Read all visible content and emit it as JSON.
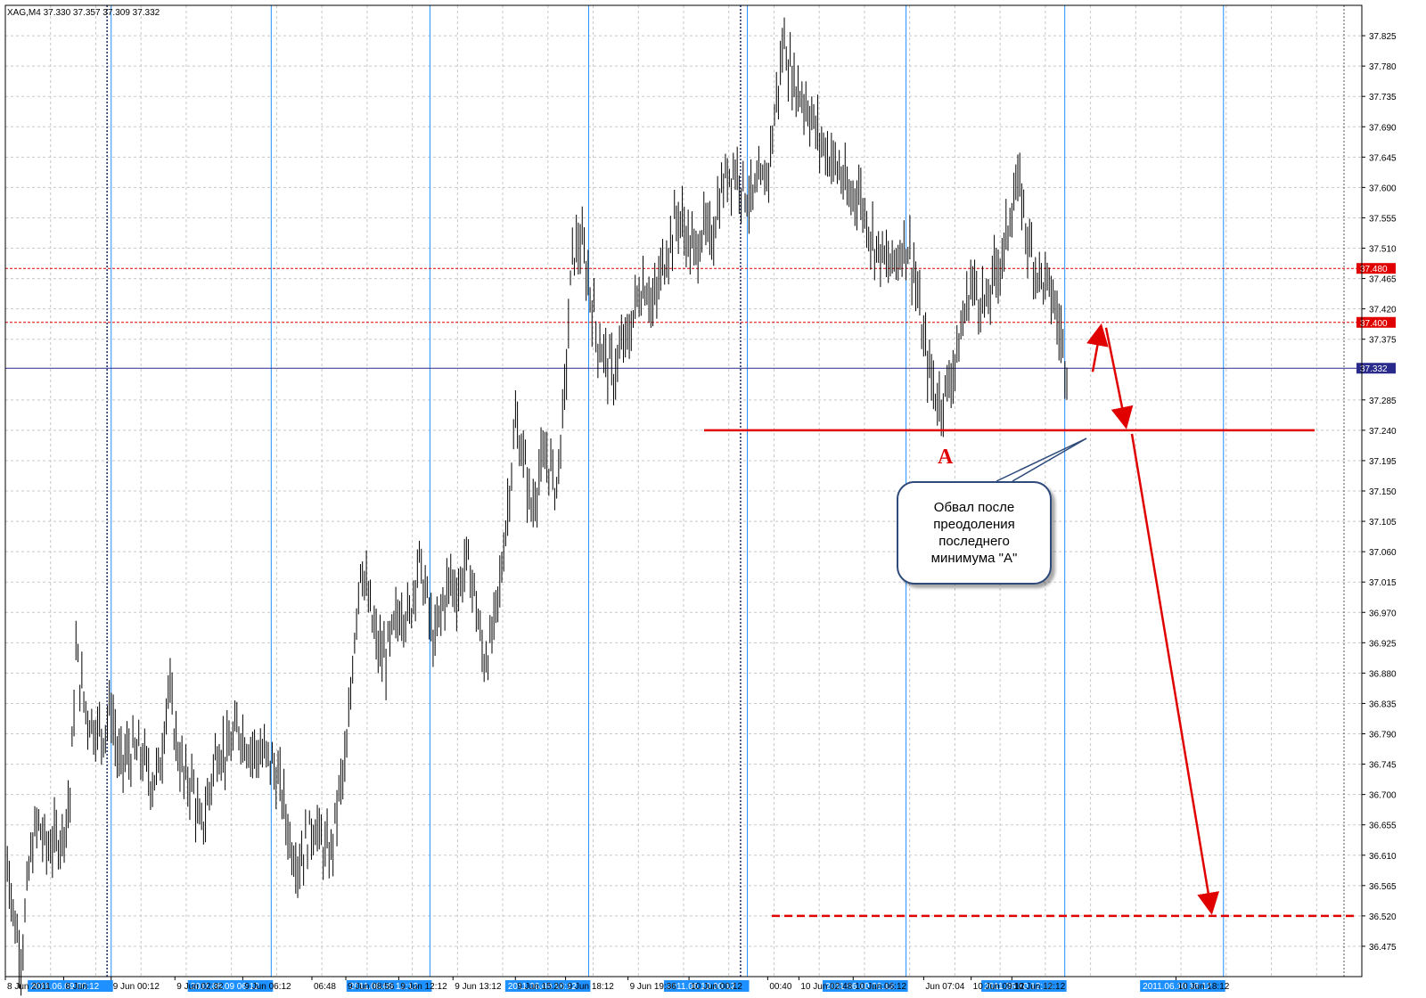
{
  "header": {
    "symbol": "XAG,M4",
    "ohlc": "37.330 37.357 37.309 37.332"
  },
  "colors": {
    "background": "#ffffff",
    "grid": "#c8c8c8",
    "candle": "#000000",
    "session_line": "#1e90ff",
    "level_line": "#e00000",
    "current_price_line": "#2a2a8c",
    "annotation": "#e00000",
    "axis_text": "#000000"
  },
  "annotation": {
    "label_a": "A",
    "callout_text": "Обвал после преодоления последнего минимума \"A\""
  },
  "chart_data": {
    "type": "bar",
    "title": "",
    "ylim": [
      36.43,
      37.87
    ],
    "y_ticks": [
      "37.825",
      "37.780",
      "37.735",
      "37.690",
      "37.645",
      "37.600",
      "37.555",
      "37.510",
      "37.465",
      "37.420",
      "37.375",
      "37.285",
      "37.240",
      "37.195",
      "37.150",
      "37.105",
      "37.060",
      "37.015",
      "36.970",
      "36.925",
      "36.880",
      "36.835",
      "36.790",
      "36.745",
      "36.700",
      "36.655",
      "36.610",
      "36.565",
      "36.520",
      "36.475"
    ],
    "x_labels": [
      "8 Jun 2011",
      "8 Jun",
      "9 Jun 00:12",
      "9 Jun 02:32",
      "9 Jun 06:12",
      "06:48",
      "9 Jun 08:56",
      "9 Jun 12:12",
      "9 Jun 13:12",
      "9 Jun 15:20",
      "9 Jun 18:12",
      "9 Jun 19:36",
      "10 Jun 00:12",
      "00:40",
      "10 Jun 02:48",
      "10 Jun 06:12",
      "Jun 07:04",
      "10 Jun 09:12",
      "10 Jun 12:12",
      "10 Jun 18:12"
    ],
    "x_label_frac": [
      0.0,
      0.043,
      0.078,
      0.125,
      0.175,
      0.226,
      0.251,
      0.29,
      0.33,
      0.376,
      0.413,
      0.459,
      0.504,
      0.562,
      0.585,
      0.625,
      0.677,
      0.712,
      0.742,
      0.863
    ],
    "session_markers": [
      "2011.06.09 00:12",
      "2011.06.09 06:12",
      "2011.06.09 12:12",
      "2011.06.09 18:12",
      "2011.06.10 00:12",
      "2011.06.10 06:12",
      "2011.06.10 12:12",
      "2011.06.10 18:12"
    ],
    "session_frac": [
      0.078,
      0.196,
      0.313,
      0.43,
      0.547,
      0.664,
      0.781,
      0.898
    ],
    "dotted_session_frac": [
      0.075,
      0.542
    ],
    "price_levels": [
      {
        "label": "37.480",
        "value": 37.48,
        "style": "dotted-red"
      },
      {
        "label": "37.400",
        "value": 37.4,
        "style": "dotted-red"
      },
      {
        "label": "37.332",
        "value": 37.332,
        "style": "current"
      }
    ],
    "support_level_A": 37.24,
    "target_level": 36.52,
    "series": [
      {
        "values_anchor": [
          [
            0.0,
            36.64
          ],
          [
            0.006,
            36.52
          ],
          [
            0.012,
            36.46
          ],
          [
            0.018,
            36.6
          ],
          [
            0.024,
            36.66
          ],
          [
            0.03,
            36.62
          ],
          [
            0.036,
            36.63
          ],
          [
            0.042,
            36.64
          ],
          [
            0.048,
            36.7
          ],
          [
            0.052,
            36.91
          ],
          [
            0.056,
            36.86
          ],
          [
            0.06,
            36.82
          ],
          [
            0.066,
            36.8
          ],
          [
            0.072,
            36.79
          ],
          [
            0.078,
            36.83
          ],
          [
            0.084,
            36.74
          ],
          [
            0.09,
            36.76
          ],
          [
            0.1,
            36.76
          ],
          [
            0.108,
            36.72
          ],
          [
            0.114,
            36.74
          ],
          [
            0.12,
            36.86
          ],
          [
            0.126,
            36.78
          ],
          [
            0.132,
            36.72
          ],
          [
            0.138,
            36.72
          ],
          [
            0.144,
            36.64
          ],
          [
            0.15,
            36.7
          ],
          [
            0.156,
            36.77
          ],
          [
            0.164,
            36.76
          ],
          [
            0.172,
            36.8
          ],
          [
            0.18,
            36.77
          ],
          [
            0.188,
            36.76
          ],
          [
            0.196,
            36.75
          ],
          [
            0.204,
            36.7
          ],
          [
            0.21,
            36.63
          ],
          [
            0.216,
            36.6
          ],
          [
            0.222,
            36.63
          ],
          [
            0.228,
            36.66
          ],
          [
            0.234,
            36.62
          ],
          [
            0.24,
            36.61
          ],
          [
            0.246,
            36.7
          ],
          [
            0.252,
            36.76
          ],
          [
            0.256,
            36.9
          ],
          [
            0.262,
            37.05
          ],
          [
            0.268,
            36.98
          ],
          [
            0.274,
            36.92
          ],
          [
            0.28,
            36.9
          ],
          [
            0.286,
            36.94
          ],
          [
            0.292,
            36.98
          ],
          [
            0.298,
            36.96
          ],
          [
            0.304,
            37.05
          ],
          [
            0.31,
            37.0
          ],
          [
            0.316,
            36.92
          ],
          [
            0.322,
            36.98
          ],
          [
            0.328,
            37.02
          ],
          [
            0.334,
            37.0
          ],
          [
            0.34,
            37.05
          ],
          [
            0.346,
            37.0
          ],
          [
            0.352,
            36.9
          ],
          [
            0.358,
            36.92
          ],
          [
            0.364,
            37.0
          ],
          [
            0.37,
            37.12
          ],
          [
            0.376,
            37.25
          ],
          [
            0.382,
            37.2
          ],
          [
            0.388,
            37.12
          ],
          [
            0.394,
            37.18
          ],
          [
            0.4,
            37.2
          ],
          [
            0.406,
            37.15
          ],
          [
            0.412,
            37.28
          ],
          [
            0.418,
            37.5
          ],
          [
            0.424,
            37.52
          ],
          [
            0.43,
            37.46
          ],
          [
            0.436,
            37.38
          ],
          [
            0.442,
            37.35
          ],
          [
            0.448,
            37.32
          ],
          [
            0.454,
            37.36
          ],
          [
            0.46,
            37.38
          ],
          [
            0.466,
            37.44
          ],
          [
            0.472,
            37.46
          ],
          [
            0.478,
            37.42
          ],
          [
            0.484,
            37.48
          ],
          [
            0.49,
            37.52
          ],
          [
            0.496,
            37.56
          ],
          [
            0.502,
            37.53
          ],
          [
            0.508,
            37.5
          ],
          [
            0.514,
            37.54
          ],
          [
            0.52,
            37.52
          ],
          [
            0.526,
            37.58
          ],
          [
            0.532,
            37.62
          ],
          [
            0.538,
            37.63
          ],
          [
            0.544,
            37.6
          ],
          [
            0.55,
            37.58
          ],
          [
            0.556,
            37.6
          ],
          [
            0.562,
            37.62
          ],
          [
            0.568,
            37.72
          ],
          [
            0.574,
            37.82
          ],
          [
            0.58,
            37.76
          ],
          [
            0.586,
            37.74
          ],
          [
            0.592,
            37.72
          ],
          [
            0.598,
            37.68
          ],
          [
            0.604,
            37.66
          ],
          [
            0.61,
            37.64
          ],
          [
            0.616,
            37.62
          ],
          [
            0.622,
            37.58
          ],
          [
            0.628,
            37.6
          ],
          [
            0.634,
            37.56
          ],
          [
            0.64,
            37.52
          ],
          [
            0.646,
            37.5
          ],
          [
            0.652,
            37.48
          ],
          [
            0.658,
            37.5
          ],
          [
            0.664,
            37.52
          ],
          [
            0.67,
            37.48
          ],
          [
            0.676,
            37.38
          ],
          [
            0.682,
            37.32
          ],
          [
            0.688,
            37.28
          ],
          [
            0.694,
            37.3
          ],
          [
            0.7,
            37.34
          ],
          [
            0.706,
            37.4
          ],
          [
            0.712,
            37.46
          ],
          [
            0.718,
            37.44
          ],
          [
            0.724,
            37.42
          ],
          [
            0.73,
            37.48
          ],
          [
            0.736,
            37.5
          ],
          [
            0.742,
            37.58
          ],
          [
            0.748,
            37.6
          ],
          [
            0.754,
            37.52
          ],
          [
            0.76,
            37.48
          ],
          [
            0.766,
            37.46
          ],
          [
            0.772,
            37.44
          ],
          [
            0.778,
            37.38
          ],
          [
            0.784,
            37.32
          ]
        ]
      }
    ]
  }
}
